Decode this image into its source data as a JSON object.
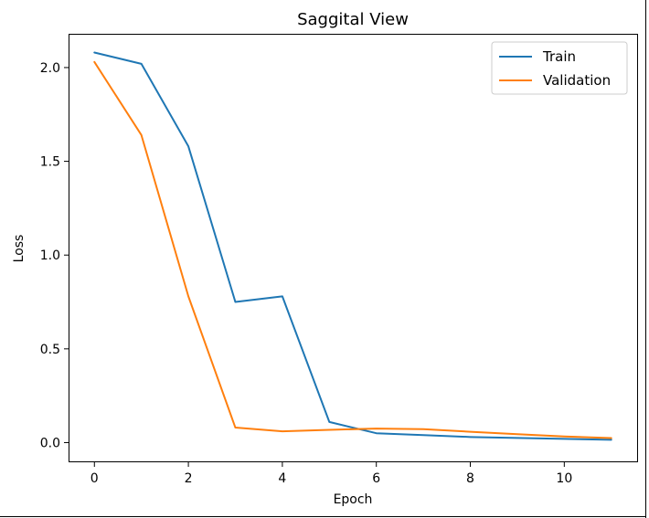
{
  "chart_data": {
    "type": "line",
    "title": "Saggital View",
    "xlabel": "Epoch",
    "ylabel": "Loss",
    "xlim": [
      -0.55,
      11.55
    ],
    "ylim": [
      -0.1,
      2.18
    ],
    "xticks": [
      0,
      2,
      4,
      6,
      8,
      10
    ],
    "yticks": [
      0.0,
      0.5,
      1.0,
      1.5,
      2.0
    ],
    "legend_position": "top-right",
    "grid": false,
    "x": [
      0,
      1,
      2,
      3,
      4,
      5,
      6,
      7,
      8,
      9,
      10,
      11
    ],
    "series": [
      {
        "name": "Train",
        "color": "#1f77b4",
        "values": [
          2.08,
          2.02,
          1.58,
          0.75,
          0.78,
          0.11,
          0.05,
          0.04,
          0.03,
          0.025,
          0.02,
          0.015
        ]
      },
      {
        "name": "Validation",
        "color": "#ff7f0e",
        "values": [
          2.03,
          1.64,
          0.78,
          0.08,
          0.06,
          0.068,
          0.075,
          0.072,
          0.058,
          0.045,
          0.033,
          0.024
        ]
      }
    ]
  }
}
